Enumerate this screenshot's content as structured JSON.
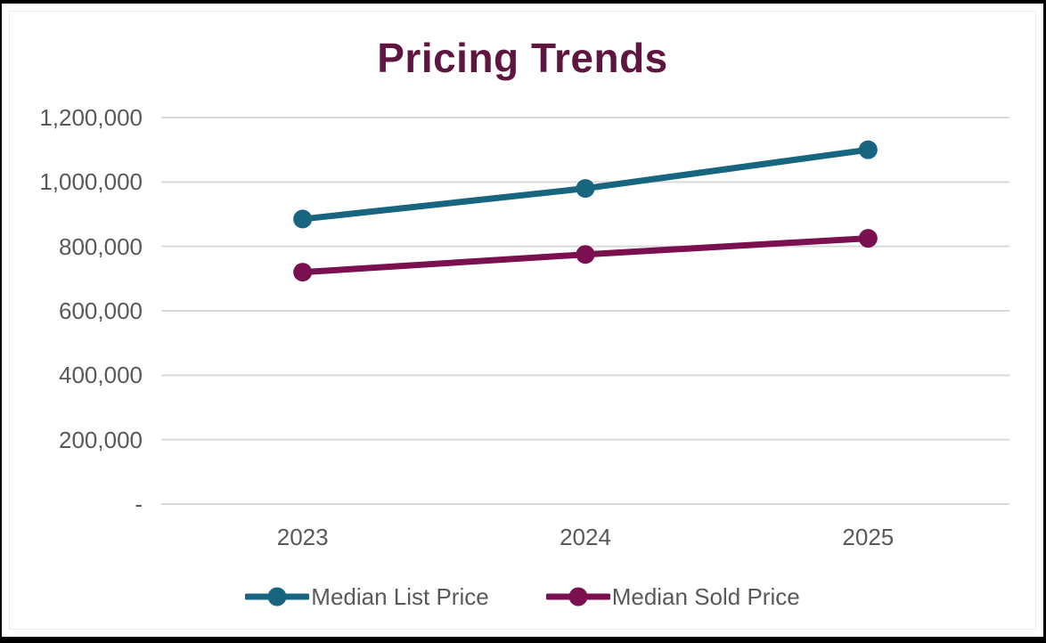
{
  "chart": {
    "background_color": "#ffffff",
    "outer_border_color": "#000000",
    "grid_color": "#D9D9D9",
    "axis_label_color": "#595959",
    "title_color": "#5E1640"
  },
  "chart_data": {
    "type": "line",
    "title": "Pricing Trends",
    "categories": [
      "2023",
      "2024",
      "2025"
    ],
    "series": [
      {
        "name": "Median List Price",
        "color": "#186580",
        "values": [
          885000,
          980000,
          1100000
        ]
      },
      {
        "name": "Median Sold Price",
        "color": "#7B1051",
        "values": [
          720000,
          775000,
          825000
        ]
      }
    ],
    "xlabel": "",
    "ylabel": "",
    "ylim": [
      0,
      1200000
    ],
    "ytick_interval": 200000,
    "ytick_labels": [
      "-",
      "200,000",
      "400,000",
      "600,000",
      "800,000",
      "1,000,000",
      "1,200,000"
    ],
    "grid": true,
    "legend_position": "bottom"
  }
}
